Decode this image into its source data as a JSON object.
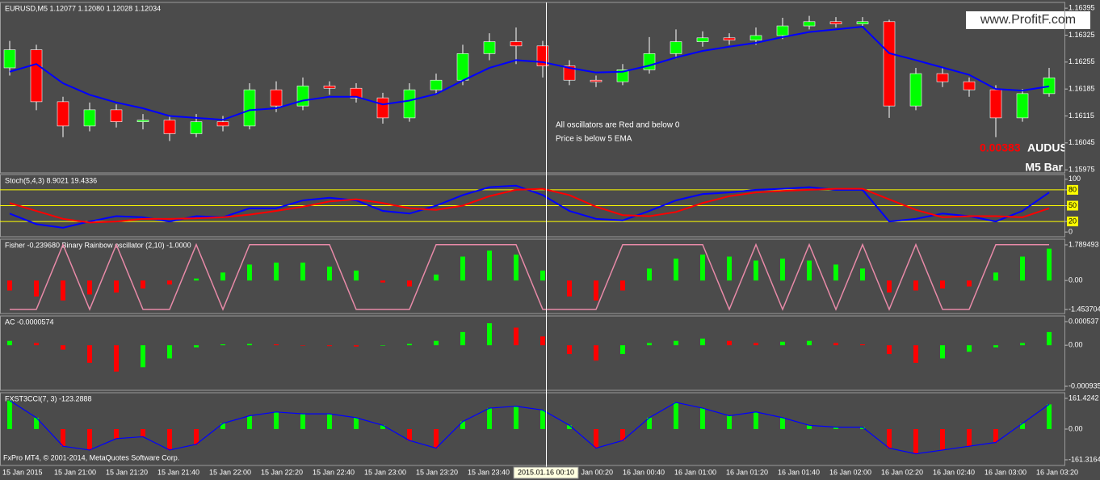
{
  "header": {
    "symbol_info": "EURUSD,M5  1.12077 1.12080 1.12028 1.12034",
    "watermark": "www.ProfitF.com",
    "copyright": "FxPro MT4, © 2001-2014, MetaQuotes Software Corp."
  },
  "time_axis": {
    "labels": [
      "15 Jan 2015",
      "15 Jan 21:00",
      "15 Jan 21:20",
      "15 Jan 21:40",
      "15 Jan 22:00",
      "15 Jan 22:20",
      "15 Jan 22:40",
      "15 Jan 23:00",
      "15 Jan 23:20",
      "15 Jan 23:40",
      "16 Jan 00:20",
      "16 Jan 00:40",
      "16 Jan 01:00",
      "16 Jan 01:20",
      "16 Jan 01:40",
      "16 Jan 02:00",
      "16 Jan 02:20",
      "16 Jan 02:40",
      "16 Jan 03:00",
      "16 Jan 03:20"
    ],
    "cursor_label": "2015.01.16 00:10"
  },
  "chart_data": [
    {
      "type": "candlestick",
      "title": "EURUSD,M5  1.12077 1.12080 1.12028 1.12034",
      "open": [
        1.1624,
        1.16287,
        1.16152,
        1.16089,
        1.16131,
        1.161,
        1.16104,
        1.16069,
        1.161,
        1.16089,
        1.16183,
        1.16141,
        1.16193,
        1.16187,
        1.16162,
        1.1611,
        1.16183,
        1.16208,
        1.16277,
        1.16308,
        1.16297,
        1.16245,
        1.16208,
        1.16204,
        1.16235,
        1.16277,
        1.16308,
        1.16318,
        1.16312,
        1.16324,
        1.16349,
        1.1636,
        1.16354,
        1.1636,
        1.16141,
        1.16225,
        1.16204,
        1.16183,
        1.1611,
        1.16173
      ],
      "high": [
        1.1631,
        1.163,
        1.16165,
        1.1615,
        1.16145,
        1.1612,
        1.16115,
        1.1612,
        1.16115,
        1.162,
        1.16205,
        1.16215,
        1.16205,
        1.162,
        1.16175,
        1.162,
        1.16225,
        1.163,
        1.1633,
        1.16345,
        1.1631,
        1.1626,
        1.1622,
        1.1625,
        1.1632,
        1.1634,
        1.16335,
        1.1633,
        1.16345,
        1.1637,
        1.16375,
        1.16372,
        1.16372,
        1.16365,
        1.1624,
        1.1624,
        1.16215,
        1.16195,
        1.16185,
        1.1624
      ],
      "low": [
        1.1622,
        1.1613,
        1.1606,
        1.16075,
        1.16085,
        1.1608,
        1.1605,
        1.1606,
        1.16075,
        1.1608,
        1.16125,
        1.1613,
        1.1617,
        1.1615,
        1.16095,
        1.161,
        1.1617,
        1.16195,
        1.1626,
        1.1625,
        1.16215,
        1.16195,
        1.1619,
        1.16195,
        1.16225,
        1.16265,
        1.16295,
        1.163,
        1.163,
        1.16315,
        1.1634,
        1.16345,
        1.16345,
        1.1611,
        1.1613,
        1.1619,
        1.16165,
        1.1606,
        1.161,
        1.16165
      ],
      "close": [
        1.16287,
        1.16152,
        1.16089,
        1.16131,
        1.161,
        1.16104,
        1.16069,
        1.161,
        1.16089,
        1.16183,
        1.16141,
        1.16193,
        1.16187,
        1.16162,
        1.1611,
        1.16183,
        1.16208,
        1.16277,
        1.16308,
        1.16297,
        1.16245,
        1.16208,
        1.16204,
        1.16235,
        1.16277,
        1.16308,
        1.16318,
        1.16312,
        1.16324,
        1.16349,
        1.1636,
        1.16354,
        1.1636,
        1.16141,
        1.16225,
        1.16204,
        1.16183,
        1.1611,
        1.16173,
        1.16214
      ],
      "up_color": "#00ff00",
      "down_color": "#ff0000",
      "ema": {
        "color": "#0000ff",
        "values": [
          1.1623,
          1.1625,
          1.162,
          1.1617,
          1.1615,
          1.16135,
          1.16115,
          1.1611,
          1.16105,
          1.1613,
          1.16135,
          1.16155,
          1.16165,
          1.16165,
          1.16145,
          1.16155,
          1.16172,
          1.16207,
          1.1624,
          1.1626,
          1.16255,
          1.1624,
          1.16228,
          1.1623,
          1.16246,
          1.16267,
          1.16284,
          1.16295,
          1.16305,
          1.1632,
          1.16333,
          1.1634,
          1.16347,
          1.16278,
          1.1626,
          1.16241,
          1.16222,
          1.16185,
          1.16181,
          1.16192
        ]
      },
      "ylim": [
        1.15967,
        1.1641
      ],
      "yticks": [
        1.16395,
        1.16325,
        1.16255,
        1.16185,
        1.16115,
        1.16045,
        1.15975
      ],
      "annotations": [
        "All oscillators are Red and below 0",
        "Price is below 5 EMA"
      ],
      "overlay": {
        "value_text": "0.00383",
        "symbol": "AUDUSD",
        "period": "M5 Bar",
        "value_color": "#ff0000"
      }
    },
    {
      "type": "line",
      "title": "Stoch(5,4,3) 8.9021 19.4336",
      "series": [
        {
          "color": "#0000ff",
          "values": [
            35,
            15,
            8,
            20,
            30,
            28,
            20,
            30,
            28,
            45,
            45,
            60,
            65,
            60,
            40,
            35,
            50,
            70,
            85,
            88,
            70,
            40,
            25,
            22,
            40,
            60,
            72,
            75,
            80,
            82,
            85,
            80,
            80,
            20,
            25,
            35,
            30,
            20,
            40,
            75
          ]
        },
        {
          "color": "#ff0000",
          "values": [
            55,
            40,
            25,
            18,
            20,
            25,
            25,
            26,
            28,
            33,
            40,
            48,
            58,
            62,
            55,
            45,
            42,
            50,
            68,
            80,
            82,
            70,
            48,
            32,
            30,
            38,
            55,
            68,
            75,
            78,
            80,
            82,
            82,
            62,
            42,
            28,
            30,
            30,
            28,
            45
          ]
        }
      ],
      "levels": [
        80,
        50,
        20
      ],
      "level_color": "#ffff00",
      "ylim": [
        -9,
        109
      ],
      "yticks": [
        100,
        80,
        50,
        20,
        0
      ]
    },
    {
      "type": "bar",
      "title": "Fisher -0.239680  Binary Rainbow oscillator (2,10) -1.0000",
      "color_by": "sign",
      "up_color": "#00ff00",
      "down_color": "#ff0000",
      "values": [
        -0.5,
        -0.8,
        -1.0,
        -0.7,
        -0.6,
        -0.4,
        -0.2,
        0.1,
        0.4,
        0.8,
        0.9,
        0.9,
        0.7,
        0.5,
        -0.1,
        -0.3,
        0.3,
        1.2,
        1.5,
        1.3,
        0.5,
        -0.8,
        -1.0,
        -0.5,
        0.6,
        1.1,
        1.3,
        1.2,
        1.0,
        1.1,
        1.0,
        0.8,
        0.6,
        -0.6,
        -0.5,
        -0.4,
        -0.3,
        0.4,
        1.2,
        1.6
      ],
      "line": {
        "color": "#e88aa8",
        "values": [
          -1.45,
          -1.45,
          1.8,
          -1.45,
          1.8,
          -1.45,
          -1.45,
          1.8,
          -1.45,
          1.8,
          1.8,
          1.8,
          1.8,
          -1.45,
          -1.45,
          -1.45,
          1.8,
          1.8,
          1.8,
          1.8,
          -1.45,
          -1.45,
          -1.45,
          1.8,
          1.8,
          1.8,
          1.8,
          -1.45,
          1.8,
          -1.45,
          1.8,
          -1.45,
          1.8,
          -1.45,
          1.8,
          -1.45,
          -1.45,
          1.8,
          1.8,
          1.8
        ]
      },
      "ylim": [
        -1.656,
        2.073
      ],
      "yticks": [
        1.789493,
        {
          "value": 0,
          "label": "0.00"
        },
        -1.453704
      ]
    },
    {
      "type": "bar",
      "title": "AC -0.0000574",
      "color_by": "change",
      "up_color": "#00ff00",
      "down_color": "#ff0000",
      "values": [
        0.0001,
        5e-05,
        -0.0001,
        -0.0004,
        -0.0006,
        -0.0005,
        -0.0003,
        -5e-05,
        2e-05,
        3e-05,
        2e-05,
        -1e-05,
        -2e-05,
        -3e-05,
        -1e-05,
        3e-05,
        0.0001,
        0.0003,
        0.0005,
        0.0004,
        0.0002,
        -0.0002,
        -0.00035,
        -0.0002,
        5e-05,
        0.0001,
        0.00015,
        0.0001,
        5e-05,
        8e-05,
        0.0001,
        5e-05,
        2e-05,
        -0.0002,
        -0.0004,
        -0.0003,
        -0.00015,
        -5e-05,
        5e-05,
        0.0003
      ],
      "ylim": [
        -0.001027,
        0.000666
      ],
      "yticks": [
        0.000537,
        {
          "value": 0,
          "label": "0.00"
        },
        -0.000935
      ]
    },
    {
      "type": "bar",
      "title": "FXST3CCI(7, 3) -123.2888",
      "color_by": "sign",
      "up_color": "#00ff00",
      "down_color": "#ff0000",
      "line_color": "#0000ff",
      "values": [
        150,
        60,
        -90,
        -110,
        -50,
        -40,
        -110,
        -80,
        30,
        70,
        90,
        80,
        80,
        60,
        20,
        -60,
        -100,
        40,
        110,
        120,
        100,
        20,
        -100,
        -60,
        60,
        140,
        110,
        70,
        90,
        60,
        20,
        10,
        10,
        -100,
        -130,
        -110,
        -90,
        -70,
        30,
        130
      ],
      "ylim": [
        -191,
        191
      ],
      "yticks": [
        161.4242,
        {
          "value": 0,
          "label": "0.00"
        },
        -161.3164
      ]
    }
  ]
}
